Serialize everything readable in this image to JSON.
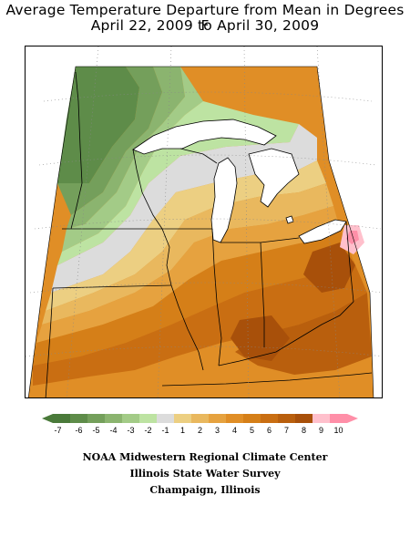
{
  "title": {
    "line1": "Average Temperature Departure from Mean in Degrees F",
    "line2": "April 22, 2009 to April 30, 2009"
  },
  "map": {
    "region": "Midwestern United States",
    "neutral_color": "#dcdcdc",
    "water_color": "#ffffff",
    "boundary_color": "#000000",
    "graticule_color": "#888888"
  },
  "legend": {
    "bins": [
      {
        "label": "-7",
        "color": "#4a7a3a"
      },
      {
        "label": "-6",
        "color": "#5e8c49"
      },
      {
        "label": "-5",
        "color": "#749f5b"
      },
      {
        "label": "-4",
        "color": "#8bb46f"
      },
      {
        "label": "-3",
        "color": "#a3cb87"
      },
      {
        "label": "-2",
        "color": "#bde3a2"
      },
      {
        "label": "-1",
        "color": "#dcdcdc"
      },
      {
        "label": "1",
        "color": "#eccf82"
      },
      {
        "label": "2",
        "color": "#e9b85e"
      },
      {
        "label": "3",
        "color": "#e6a23f"
      },
      {
        "label": "4",
        "color": "#e08e26"
      },
      {
        "label": "5",
        "color": "#d57f18"
      },
      {
        "label": "6",
        "color": "#c96e12"
      },
      {
        "label": "7",
        "color": "#b95f0d"
      },
      {
        "label": "8",
        "color": "#a8500a"
      },
      {
        "label": "9",
        "color": "#ffc0cc"
      },
      {
        "label": "10",
        "color": "#ff8fa8"
      }
    ]
  },
  "credits": {
    "line1": "NOAA Midwestern Regional Climate Center",
    "line2": "Illinois State Water Survey",
    "line3": "Champaign, Illinois"
  }
}
